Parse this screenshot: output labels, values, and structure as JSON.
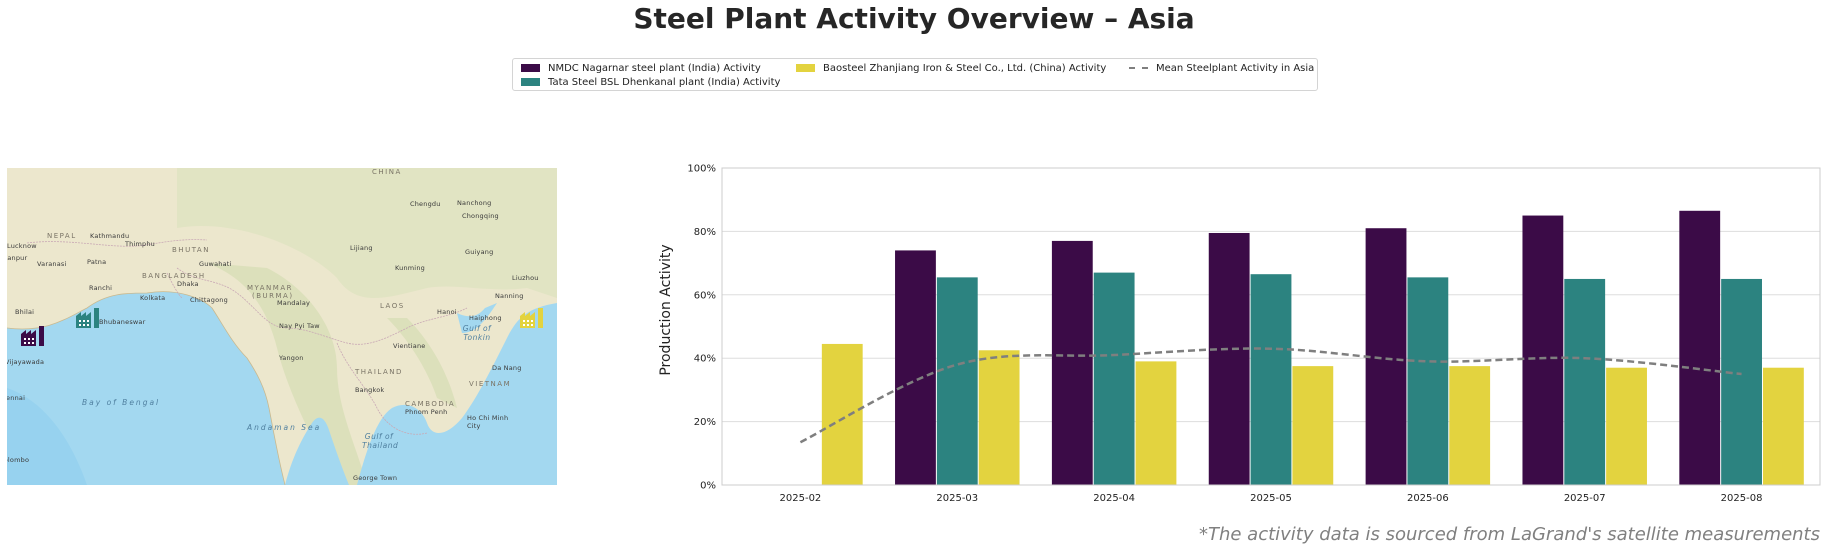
{
  "title": "Steel Plant Activity Overview – Asia",
  "footnote": "*The activity data is sourced from LaGrand's satellite measurements",
  "colors": {
    "nmdc": "#3b0b47",
    "tata": "#2c8380",
    "baosteel": "#e3d33f",
    "mean": "#7f7f7f"
  },
  "map": {
    "labels": {
      "china": "CHINA",
      "nepal": "NEPAL",
      "bhutan": "BHUTAN",
      "bangladesh": "BANGLADESH",
      "myanmar": "MYANMAR",
      "burma": "(BURMA)",
      "laos": "LAOS",
      "thailand": "THAILAND",
      "vietnam": "VIETNAM",
      "cambodia": "CAMBODIA",
      "bay_of_bengal": "Bay of Bengal",
      "andaman_sea": "Andaman Sea",
      "gulf_of_thailand": "Gulf of Thailand",
      "gulf_of_tonkin": "Gulf of Tonkin",
      "lucknow": "Lucknow",
      "kanpur": "Kanpur",
      "varanasi": "Varanasi",
      "patna": "Patna",
      "kathmandu": "Kathmandu",
      "thimphu": "Thimphu",
      "guwahati": "Guwahati",
      "ranchi": "Ranchi",
      "dhaka": "Dhaka",
      "kolkata": "Kolkata",
      "chittagong": "Chittagong",
      "bhilai": "Bhilai",
      "bhubaneswar": "Bhubaneswar",
      "vijayawada": "Vijayawada",
      "chennai": "Chennai",
      "colombo": "Colombo",
      "chengdu": "Chengdu",
      "nanchong": "Nanchong",
      "chongqing": "Chongqing",
      "guiyang": "Guiyang",
      "lijiang": "Lijiang",
      "kunming": "Kunming",
      "mandalay": "Mandalay",
      "nay_pyi_taw": "Nay Pyi Taw",
      "yangon": "Yangon",
      "hanoi": "Hanoi",
      "haiphong": "Haiphong",
      "nanning": "Nanning",
      "liuzhou": "Liuzhou",
      "vientiane": "Vientiane",
      "da_nang": "Da Nang",
      "bangkok": "Bangkok",
      "phnom_penh": "Phnom Penh",
      "ho_chi_minh_city": "Ho Chi Minh City",
      "george_town": "George Town"
    }
  },
  "chart_data": {
    "type": "bar",
    "title": "Steel Plant Activity Overview – Asia",
    "xlabel": "",
    "ylabel": "Production Activity",
    "ylim": [
      0,
      100
    ],
    "yticks": [
      "0%",
      "20%",
      "40%",
      "60%",
      "80%",
      "100%"
    ],
    "grid": true,
    "legend_position": "top-center",
    "categories": [
      "2025-02",
      "2025-03",
      "2025-04",
      "2025-05",
      "2025-06",
      "2025-07",
      "2025-08"
    ],
    "series": [
      {
        "name": "NMDC Nagarnar steel plant (India) Activity",
        "values": [
          null,
          74,
          77,
          79.5,
          81,
          85,
          86.5
        ]
      },
      {
        "name": "Tata Steel BSL Dhenkanal plant (India) Activity",
        "values": [
          null,
          65.5,
          67,
          66.5,
          65.5,
          65,
          65
        ]
      },
      {
        "name": "Baosteel Zhanjiang Iron & Steel Co., Ltd. (China) Activity",
        "values": [
          44.5,
          42.5,
          39,
          37.5,
          37.5,
          37,
          37
        ]
      }
    ],
    "mean_line": {
      "name": "Mean Steelplant Activity in Asia",
      "values": [
        13.5,
        38,
        41,
        43,
        39,
        40,
        35
      ]
    }
  }
}
